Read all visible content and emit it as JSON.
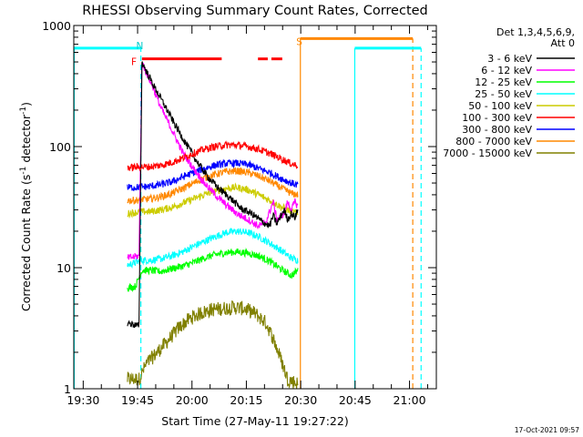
{
  "chart_data": {
    "type": "line",
    "title": "RHESSI Observing Summary Count Rates, Corrected",
    "xlabel": "Start Time (27-May-11 19:27:22)",
    "ylabel": "Corrected Count Rate (s⁻¹ detector⁻¹)",
    "ylabel_parts": {
      "prefix": "Corrected Count Rate (s",
      "sup1": "-1",
      "middle": " detector",
      "sup2": "-1",
      "suffix": ")"
    },
    "x_unit": "minutes since 19:27:22",
    "xlim": [
      0,
      100
    ],
    "ylim": [
      1,
      1000
    ],
    "yscale": "log",
    "x_ticks": [
      {
        "label": "19:30",
        "value": 2.6
      },
      {
        "label": "19:45",
        "value": 17.6
      },
      {
        "label": "20:00",
        "value": 32.6
      },
      {
        "label": "20:15",
        "value": 47.6
      },
      {
        "label": "20:30",
        "value": 62.6
      },
      {
        "label": "20:45",
        "value": 77.6
      },
      {
        "label": "21:00",
        "value": 92.6
      }
    ],
    "y_ticks": [
      {
        "label": "1",
        "value": 1
      },
      {
        "label": "10",
        "value": 10
      },
      {
        "label": "100",
        "value": 100
      },
      {
        "label": "1000",
        "value": 1000
      }
    ],
    "legend_title": "Det 1,3,4,5,6,9,",
    "legend_subtitle": "Att 0",
    "legend_position": "right",
    "series": [
      {
        "name": "3 - 6 keV",
        "color": "#000000",
        "points": [
          [
            14.8,
            3.5
          ],
          [
            18,
            3.3
          ],
          [
            18.8,
            500
          ],
          [
            20,
            420
          ],
          [
            22,
            320
          ],
          [
            25,
            220
          ],
          [
            28,
            150
          ],
          [
            31,
            105
          ],
          [
            34,
            75
          ],
          [
            37,
            56
          ],
          [
            40,
            45
          ],
          [
            43,
            38
          ],
          [
            46,
            31
          ],
          [
            49,
            28
          ],
          [
            52,
            24
          ],
          [
            54,
            22
          ],
          [
            55,
            27
          ],
          [
            56,
            23
          ],
          [
            58,
            30
          ],
          [
            59,
            25
          ],
          [
            60,
            28
          ],
          [
            61,
            26
          ],
          [
            61.8,
            30
          ]
        ]
      },
      {
        "name": "6 - 12 keV",
        "color": "#ff00ff",
        "points": [
          [
            14.8,
            12
          ],
          [
            18,
            12.5
          ],
          [
            18.8,
            490
          ],
          [
            20,
            410
          ],
          [
            22,
            300
          ],
          [
            24,
            210
          ],
          [
            26,
            160
          ],
          [
            28,
            120
          ],
          [
            30,
            90
          ],
          [
            33,
            66
          ],
          [
            36,
            50
          ],
          [
            39,
            40
          ],
          [
            42,
            33
          ],
          [
            45,
            28
          ],
          [
            48,
            25
          ],
          [
            51,
            22
          ],
          [
            53,
            24
          ],
          [
            55,
            35
          ],
          [
            56,
            25
          ],
          [
            58,
            28
          ],
          [
            59,
            35
          ],
          [
            60,
            30
          ],
          [
            61,
            35
          ],
          [
            61.8,
            32
          ]
        ]
      },
      {
        "name": "12 - 25 keV",
        "color": "#00ff00",
        "points": [
          [
            14.8,
            6.8
          ],
          [
            17,
            7
          ],
          [
            18.8,
            9.5
          ],
          [
            21,
            9.5
          ],
          [
            24,
            9.3
          ],
          [
            27,
            9.8
          ],
          [
            30,
            10.3
          ],
          [
            33,
            11
          ],
          [
            36,
            12
          ],
          [
            39,
            12.8
          ],
          [
            42,
            13.3
          ],
          [
            45,
            13.5
          ],
          [
            48,
            13.2
          ],
          [
            51,
            12.5
          ],
          [
            54,
            11.3
          ],
          [
            57,
            9.8
          ],
          [
            60,
            8.6
          ],
          [
            61.8,
            9.5
          ]
        ]
      },
      {
        "name": "25 - 50 keV",
        "color": "#00ffff",
        "points": [
          [
            14.8,
            10.5
          ],
          [
            17,
            11
          ],
          [
            18.8,
            11.5
          ],
          [
            21,
            11.5
          ],
          [
            24,
            11.8
          ],
          [
            27,
            12.5
          ],
          [
            30,
            13.5
          ],
          [
            33,
            15
          ],
          [
            36,
            16.5
          ],
          [
            39,
            18
          ],
          [
            42,
            19.5
          ],
          [
            45,
            20
          ],
          [
            48,
            19.5
          ],
          [
            51,
            18
          ],
          [
            54,
            16
          ],
          [
            57,
            14
          ],
          [
            60,
            12
          ],
          [
            61.8,
            11.5
          ]
        ]
      },
      {
        "name": "50 - 100 keV",
        "color": "#cccc00",
        "points": [
          [
            14.8,
            28
          ],
          [
            17,
            28.5
          ],
          [
            18.8,
            29
          ],
          [
            21,
            29
          ],
          [
            24,
            30
          ],
          [
            27,
            31.5
          ],
          [
            30,
            34
          ],
          [
            33,
            37
          ],
          [
            36,
            40
          ],
          [
            39,
            43
          ],
          [
            42,
            45
          ],
          [
            45,
            46
          ],
          [
            48,
            44
          ],
          [
            51,
            40
          ],
          [
            54,
            36
          ],
          [
            57,
            32
          ],
          [
            60,
            29
          ],
          [
            61.8,
            28
          ]
        ]
      },
      {
        "name": "100 - 300 keV",
        "color": "#ff0000",
        "points": [
          [
            14.8,
            67
          ],
          [
            17,
            67.5
          ],
          [
            18.8,
            68
          ],
          [
            21,
            68
          ],
          [
            24,
            70
          ],
          [
            27,
            74
          ],
          [
            30,
            80
          ],
          [
            33,
            88
          ],
          [
            36,
            95
          ],
          [
            39,
            100
          ],
          [
            42,
            103
          ],
          [
            45,
            103
          ],
          [
            48,
            100
          ],
          [
            51,
            95
          ],
          [
            54,
            88
          ],
          [
            57,
            80
          ],
          [
            60,
            72
          ],
          [
            61.8,
            70
          ]
        ]
      },
      {
        "name": "300 - 800 keV",
        "color": "#0000ff",
        "points": [
          [
            14.8,
            46
          ],
          [
            17,
            46
          ],
          [
            18.8,
            46.5
          ],
          [
            21,
            47
          ],
          [
            24,
            48.5
          ],
          [
            27,
            51
          ],
          [
            30,
            56
          ],
          [
            33,
            61
          ],
          [
            36,
            66
          ],
          [
            39,
            70
          ],
          [
            42,
            72.5
          ],
          [
            45,
            73
          ],
          [
            48,
            71
          ],
          [
            51,
            66
          ],
          [
            54,
            61
          ],
          [
            57,
            55
          ],
          [
            60,
            50
          ],
          [
            61.8,
            48
          ]
        ]
      },
      {
        "name": "800 - 7000 keV",
        "color": "#ff8800",
        "points": [
          [
            14.8,
            36
          ],
          [
            17,
            36
          ],
          [
            18.8,
            36.5
          ],
          [
            21,
            37
          ],
          [
            24,
            38.5
          ],
          [
            27,
            41
          ],
          [
            30,
            45
          ],
          [
            33,
            50
          ],
          [
            36,
            55
          ],
          [
            39,
            59
          ],
          [
            42,
            62
          ],
          [
            45,
            63
          ],
          [
            48,
            61
          ],
          [
            51,
            57
          ],
          [
            54,
            52
          ],
          [
            57,
            46
          ],
          [
            60,
            41
          ],
          [
            61.8,
            40
          ]
        ]
      },
      {
        "name": "7000 - 15000 keV",
        "color": "#808000",
        "points": [
          [
            14.8,
            1.2
          ],
          [
            18,
            1.2
          ],
          [
            20,
            1.6
          ],
          [
            23,
            2
          ],
          [
            26,
            2.5
          ],
          [
            29,
            3.2
          ],
          [
            32,
            3.8
          ],
          [
            35,
            4.2
          ],
          [
            38,
            4.5
          ],
          [
            41,
            4.6
          ],
          [
            44,
            4.7
          ],
          [
            47,
            4.6
          ],
          [
            50,
            4.2
          ],
          [
            53,
            3.5
          ],
          [
            55,
            2.6
          ],
          [
            57,
            1.8
          ],
          [
            59,
            1.2
          ],
          [
            61.8,
            1.1
          ]
        ]
      }
    ],
    "annotations": [
      {
        "label": "N",
        "x": 18.2,
        "color": "#00cccc"
      },
      {
        "label": "F",
        "x": 16.6,
        "color": "#ff0000"
      },
      {
        "label": "S",
        "x": 62.2,
        "color": "#ff8800"
      }
    ],
    "markers": {
      "night_dashed_x": [
        18.5,
        95.8
      ],
      "day_solid_x": [
        0,
        77.5
      ],
      "saa_dashed_x": [
        93.5
      ],
      "saa_solid_x": [
        62.5
      ],
      "night_bar_segments": [
        [
          0,
          18.5
        ],
        [
          77.5,
          95.8
        ]
      ],
      "flare_bar_segments": [
        [
          18.8,
          40.8
        ],
        [
          50.8,
          53.5
        ],
        [
          54.5,
          57.5
        ]
      ],
      "saa_bar_segments": [
        [
          62.5,
          93.5
        ]
      ]
    }
  },
  "footer": {
    "date": "17-Oct-2021 09:57"
  }
}
